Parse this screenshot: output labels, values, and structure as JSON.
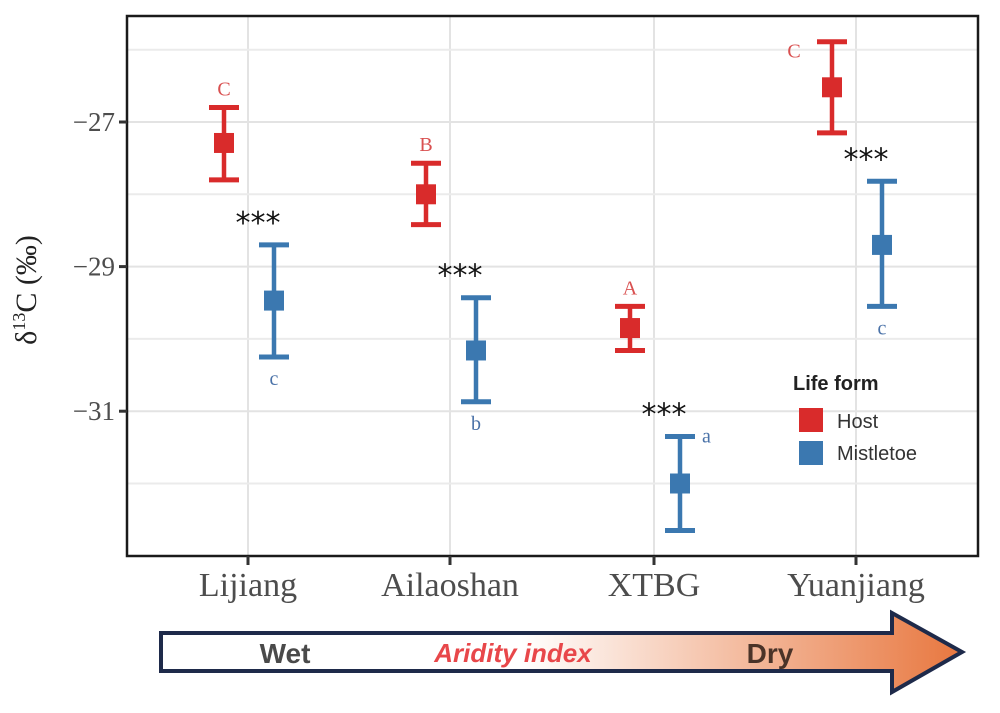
{
  "chart_data": {
    "type": "errorbar",
    "title": "",
    "xlabel": "",
    "ylabel_prefix": "δ",
    "ylabel_sup": "13",
    "ylabel_main": "C (‰)",
    "ylim": [
      -33.0,
      -25.6
    ],
    "yticks": [
      -27,
      -29,
      -31
    ],
    "ytick_labels": [
      "−27",
      "−29",
      "−31"
    ],
    "minor_gridlines": [
      -26,
      -28,
      -30,
      -32
    ],
    "grid": true,
    "categories": [
      "Lijiang",
      "Ailaoshan",
      "XTBG",
      "Yuanjiang"
    ],
    "legend": {
      "title": "Life form",
      "position": "right-center",
      "entries": [
        "Host",
        "Mistletoe"
      ]
    },
    "series": [
      {
        "name": "Host",
        "color": "#d92b2b",
        "mean": [
          -27.29,
          -28.0,
          -29.85,
          -26.52
        ],
        "upper": [
          -26.8,
          -27.57,
          -29.55,
          -25.89
        ],
        "lower": [
          -27.8,
          -28.42,
          -30.16,
          -27.15
        ],
        "letters": [
          "C",
          "B",
          "A",
          "C"
        ]
      },
      {
        "name": "Mistletoe",
        "color": "#3b78b0",
        "mean": [
          -29.47,
          -30.16,
          -32.0,
          -28.7
        ],
        "upper": [
          -28.7,
          -29.43,
          -31.35,
          -27.82
        ],
        "lower": [
          -30.25,
          -30.87,
          -32.65,
          -29.55
        ],
        "letters": [
          "c",
          "b",
          "a",
          "c"
        ]
      }
    ],
    "significance": [
      "***",
      "***",
      "***",
      "***"
    ],
    "annotation_arrow": {
      "left_label": "Wet",
      "middle_label": "Aridity index",
      "right_label": "Dry",
      "gradient_start": "#ffffff",
      "gradient_end": "#e8773f",
      "outline": "#1e2a4a"
    }
  }
}
